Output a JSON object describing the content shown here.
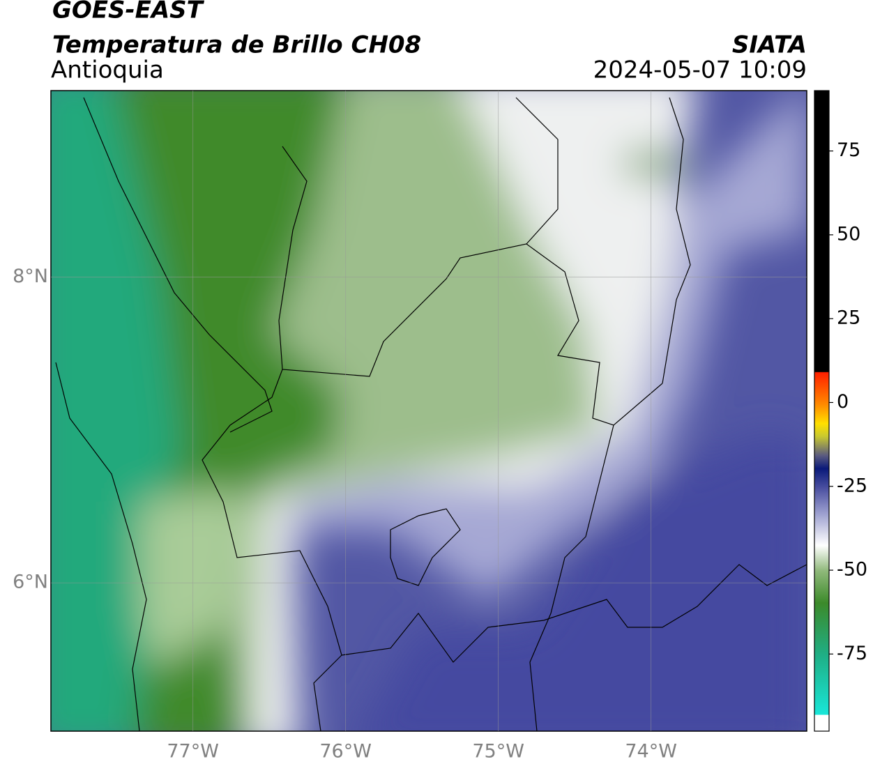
{
  "header": {
    "title": "GOES-EAST",
    "subtitle": "Temperatura de Brillo CH08",
    "region": "Antioquia",
    "agency": "SIATA",
    "datetime": "2024-05-07 10:09"
  },
  "map": {
    "xlim": [
      -77.93,
      -72.98
    ],
    "ylim": [
      5.03,
      9.22
    ],
    "xticks": [
      {
        "value": -77,
        "label": "77°W"
      },
      {
        "value": -76,
        "label": "76°W"
      },
      {
        "value": -75,
        "label": "75°W"
      },
      {
        "value": -74,
        "label": "74°W"
      }
    ],
    "yticks": [
      {
        "value": 8,
        "label": "8°N"
      },
      {
        "value": 6,
        "label": "6°N"
      }
    ],
    "grid": true
  },
  "colorbar": {
    "lim": [
      -98,
      93
    ],
    "ticks": [
      75,
      50,
      25,
      0,
      -25,
      -50,
      -75
    ]
  }
}
